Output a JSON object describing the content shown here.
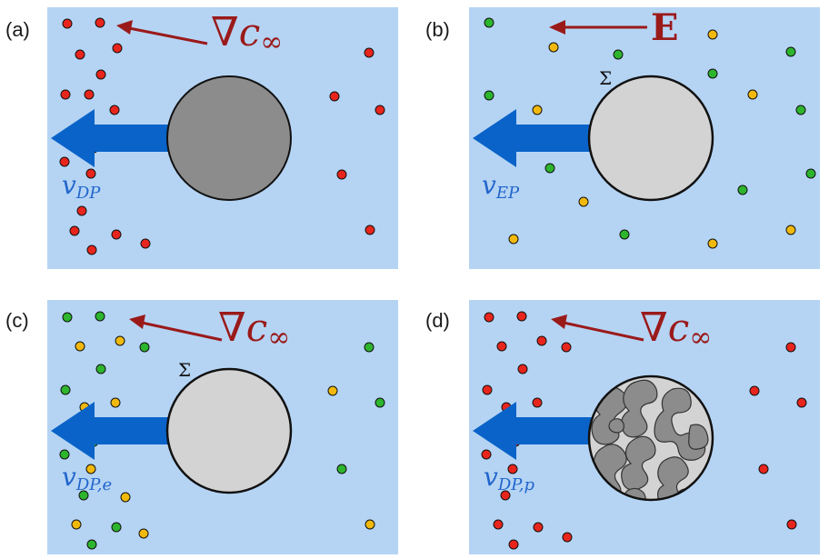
{
  "panels": [
    {
      "id": "a",
      "label": "(a)",
      "field_text": {
        "symbol": "∇",
        "var": "c",
        "sub": "∞"
      },
      "velocity": {
        "main": "v",
        "sub": "DP"
      },
      "sigma": "",
      "particle": "dark"
    },
    {
      "id": "b",
      "label": "(b)",
      "field_text": {
        "symbol": "",
        "var": "E",
        "sub": ""
      },
      "velocity": {
        "main": "v",
        "sub": "EP"
      },
      "sigma": "Σ",
      "particle": "light"
    },
    {
      "id": "c",
      "label": "(c)",
      "field_text": {
        "symbol": "∇",
        "var": "c",
        "sub": "∞"
      },
      "velocity": {
        "main": "v",
        "sub": "DP,e"
      },
      "sigma": "Σ",
      "particle": "light"
    },
    {
      "id": "d",
      "label": "(d)",
      "field_text": {
        "symbol": "∇",
        "var": "c",
        "sub": "∞"
      },
      "velocity": {
        "main": "v",
        "sub": "DP,p"
      },
      "sigma": "",
      "particle": "patterned"
    }
  ],
  "colors": {
    "background": "#b5d4f4",
    "arrow_blue": "#0a63c8",
    "field_arrow": "#9a1a1a",
    "red_dot": "#e8251c",
    "green_dot": "#2db52d",
    "yellow_dot": "#f2b90d",
    "dark_particle": "#8c8c8c",
    "light_particle": "#d3d3d3"
  },
  "icons": {
    "velocity_arrow": "big-left-arrow-icon",
    "field_arrow": "thin-left-arrow-icon"
  }
}
